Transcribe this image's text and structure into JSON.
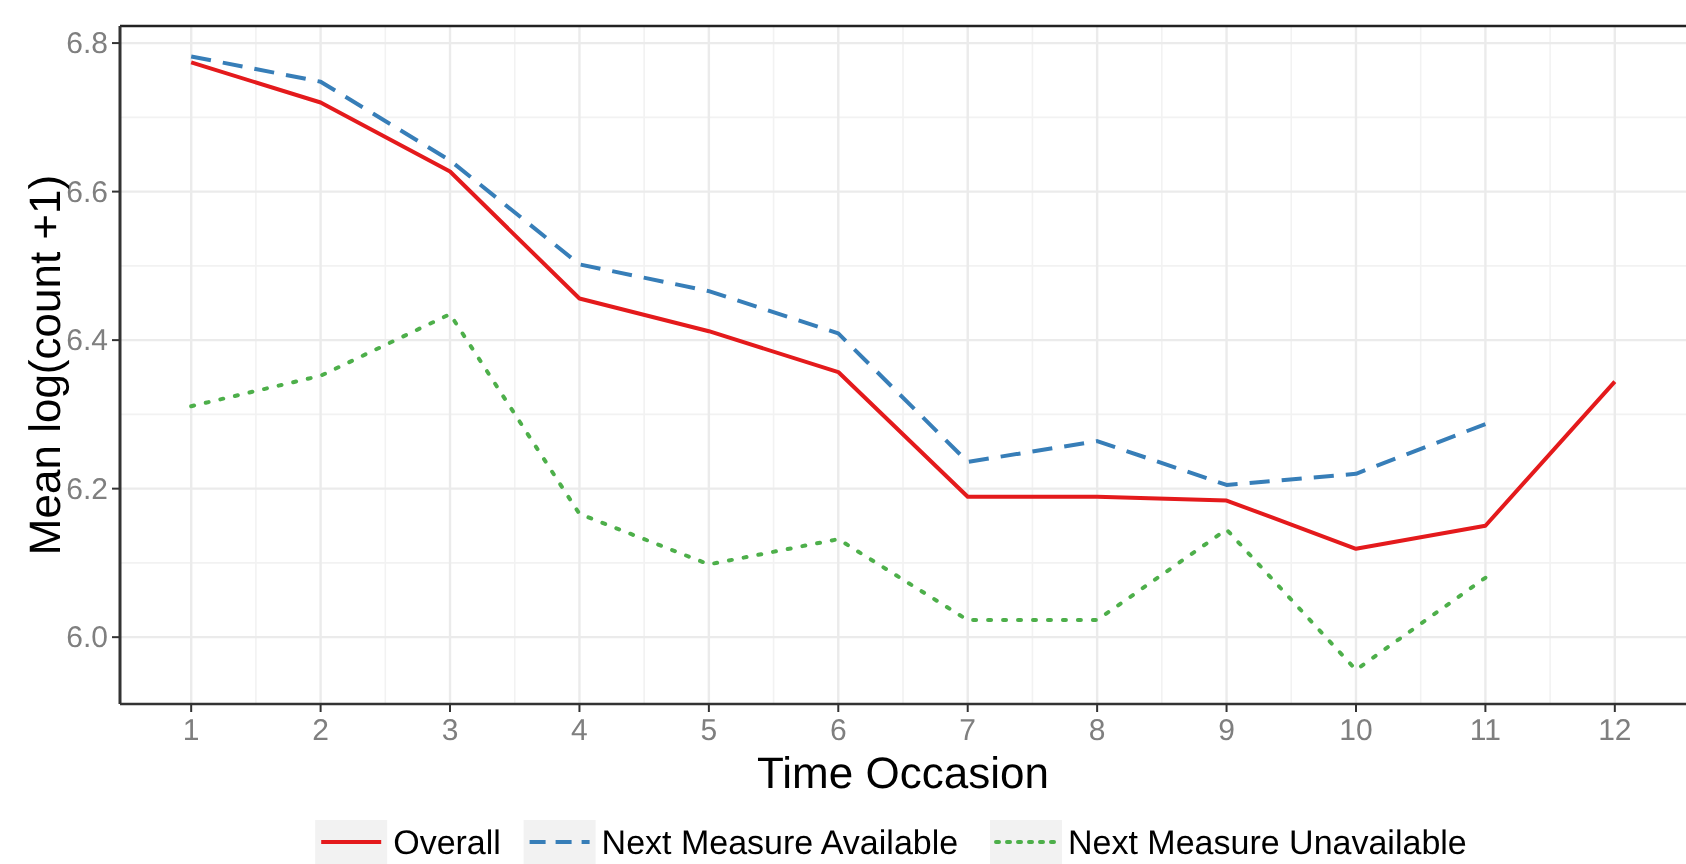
{
  "chart_data": {
    "type": "line",
    "xlabel": "Time Occasion",
    "ylabel": "Mean log(count +1)",
    "x": [
      1,
      2,
      3,
      4,
      5,
      6,
      7,
      8,
      9,
      10,
      11,
      12
    ],
    "xlim": [
      0.45,
      12.55
    ],
    "xticks": [
      1,
      2,
      3,
      4,
      5,
      6,
      7,
      8,
      9,
      10,
      11,
      12
    ],
    "ylim": [
      5.91,
      6.823
    ],
    "yticks": [
      {
        "value": 6.0,
        "label": "6.0"
      },
      {
        "value": 6.2,
        "label": "6.2"
      },
      {
        "value": 6.4,
        "label": "6.4"
      },
      {
        "value": 6.6,
        "label": "6.6"
      },
      {
        "value": 6.8,
        "label": "6.8"
      }
    ],
    "grid": true,
    "legend": "bottom",
    "series": [
      {
        "name": "Overall",
        "color": "#e41a1c",
        "line_style": "solid",
        "values": [
          6.774,
          6.72,
          6.627,
          6.456,
          6.412,
          6.357,
          6.189,
          6.189,
          6.184,
          6.119,
          6.15,
          6.344
        ]
      },
      {
        "name": "Next Measure Available",
        "color": "#377eb8",
        "line_style": "dashed",
        "values": [
          6.782,
          6.748,
          6.642,
          6.502,
          6.466,
          6.409,
          6.236,
          6.264,
          6.205,
          6.22,
          6.287,
          null
        ]
      },
      {
        "name": "Next Measure Unavailable",
        "color": "#4daf4a",
        "line_style": "dotted",
        "values": [
          6.311,
          6.352,
          6.435,
          6.166,
          6.098,
          6.132,
          6.023,
          6.023,
          6.145,
          5.956,
          6.08,
          null
        ]
      }
    ]
  }
}
